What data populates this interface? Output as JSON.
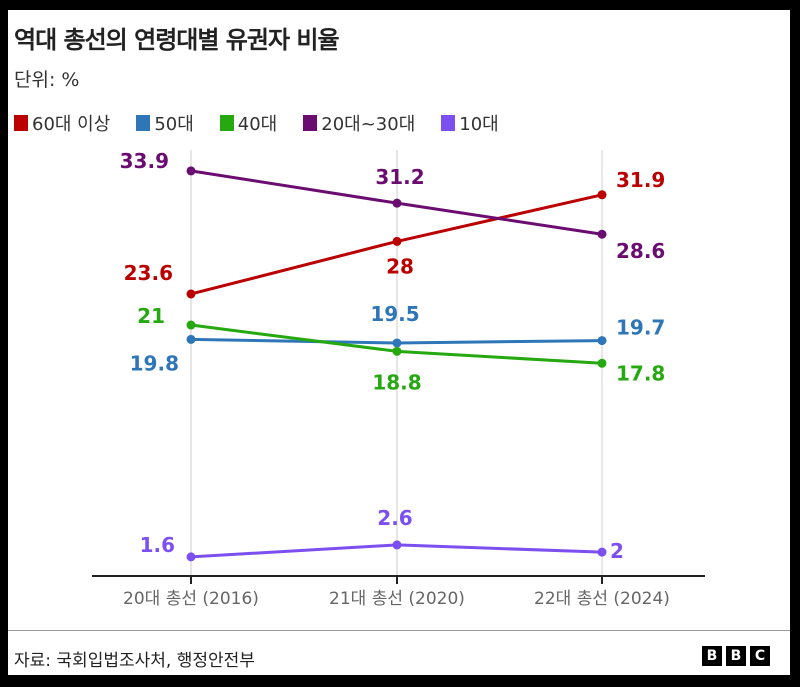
{
  "title": "역대 총선의 연령대별 유권자 비율",
  "subtitle": "단위: %",
  "source": "자료: 국회입법조사처, 행정안전부",
  "logo": "BBC",
  "chart_data": {
    "type": "line",
    "categories": [
      "20대 총선 (2016)",
      "21대 총선 (2020)",
      "22대 총선 (2024)"
    ],
    "ylim": [
      0,
      36
    ],
    "grid": "vertical lines at categories",
    "legend_position": "top-left",
    "series": [
      {
        "name": "60대 이상",
        "color": "#bb0000",
        "values": [
          23.6,
          28,
          31.9
        ]
      },
      {
        "name": "50대",
        "color": "#2e76b8",
        "values": [
          19.8,
          19.5,
          19.7
        ]
      },
      {
        "name": "40대",
        "color": "#25a810",
        "values": [
          21,
          18.8,
          17.8
        ]
      },
      {
        "name": "20대~30대",
        "color": "#6b0d70",
        "values": [
          33.9,
          31.2,
          28.6
        ]
      },
      {
        "name": "10대",
        "color": "#7b4ff0",
        "values": [
          1.6,
          2.6,
          2
        ]
      }
    ]
  }
}
